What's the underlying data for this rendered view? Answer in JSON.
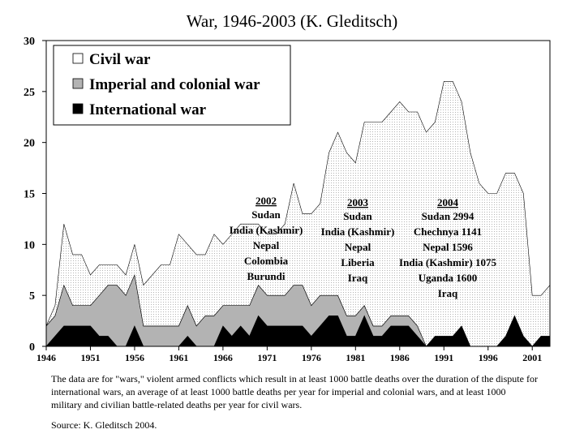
{
  "chart_data": {
    "type": "area",
    "title": "War, 1946-2003 (K. Gleditsch)",
    "xlabel": "",
    "ylabel": "",
    "ylim": [
      0,
      30
    ],
    "xlim": [
      1946,
      2003
    ],
    "stacked": true,
    "grid": false,
    "legend_position": "top-left",
    "x_ticks": [
      1946,
      1951,
      1956,
      1961,
      1966,
      1971,
      1976,
      1981,
      1986,
      1991,
      1996,
      2001
    ],
    "y_ticks": [
      0,
      5,
      10,
      15,
      20,
      25,
      30
    ],
    "x": [
      1946,
      1947,
      1948,
      1949,
      1950,
      1951,
      1952,
      1953,
      1954,
      1955,
      1956,
      1957,
      1958,
      1959,
      1960,
      1961,
      1962,
      1963,
      1964,
      1965,
      1966,
      1967,
      1968,
      1969,
      1970,
      1971,
      1972,
      1973,
      1974,
      1975,
      1976,
      1977,
      1978,
      1979,
      1980,
      1981,
      1982,
      1983,
      1984,
      1985,
      1986,
      1987,
      1988,
      1989,
      1990,
      1991,
      1992,
      1993,
      1994,
      1995,
      1996,
      1997,
      1998,
      1999,
      2000,
      2001,
      2002,
      2003
    ],
    "series": [
      {
        "name": "International war",
        "color": "#000000",
        "values": [
          0,
          1,
          2,
          2,
          2,
          2,
          1,
          1,
          0,
          0,
          2,
          0,
          0,
          0,
          0,
          0,
          1,
          0,
          0,
          0,
          2,
          1,
          2,
          1,
          3,
          2,
          2,
          2,
          2,
          2,
          1,
          2,
          3,
          3,
          1,
          1,
          3,
          1,
          1,
          2,
          2,
          2,
          1,
          0,
          1,
          1,
          1,
          2,
          0,
          0,
          0,
          0,
          1,
          3,
          1,
          0,
          1,
          1
        ]
      },
      {
        "name": "Imperial and colonial war",
        "color": "#b3b3b3",
        "values": [
          2,
          2,
          4,
          2,
          2,
          2,
          4,
          5,
          6,
          5,
          5,
          2,
          2,
          2,
          2,
          2,
          3,
          2,
          3,
          3,
          2,
          3,
          2,
          3,
          3,
          3,
          3,
          3,
          4,
          4,
          3,
          3,
          2,
          2,
          2,
          2,
          1,
          1,
          1,
          1,
          1,
          1,
          1,
          0,
          0,
          0,
          0,
          0,
          0,
          0,
          0,
          0,
          0,
          0,
          0,
          0,
          0,
          0
        ]
      },
      {
        "name": "Civil war",
        "color": "#ffffff",
        "values": [
          0,
          1,
          6,
          5,
          5,
          3,
          3,
          2,
          2,
          2,
          3,
          4,
          5,
          6,
          6,
          9,
          6,
          7,
          6,
          8,
          6,
          7,
          8,
          8,
          6,
          6,
          6,
          7,
          10,
          7,
          9,
          9,
          14,
          16,
          16,
          15,
          18,
          20,
          20,
          20,
          21,
          20,
          21,
          21,
          21,
          25,
          25,
          22,
          19,
          16,
          15,
          15,
          16,
          14,
          14,
          5,
          4,
          5
        ]
      }
    ],
    "annotations": [
      {
        "year": "2002",
        "lines": [
          "Sudan",
          "India (Kashmir)",
          "Nepal",
          "Colombia",
          "Burundi"
        ]
      },
      {
        "year": "2003",
        "lines": [
          "Sudan",
          "India (Kashmir)",
          "Nepal",
          "Liberia",
          "Iraq"
        ]
      },
      {
        "year": "2004",
        "lines": [
          "Sudan 2994",
          "Chechnya 1141",
          "Nepal 1596",
          "India (Kashmir) 1075",
          "Uganda 1600",
          "Iraq"
        ]
      }
    ]
  },
  "caption": "The data are for \"wars,\" violent armed conflicts which result in at least 1000 battle deaths over the duration of the dispute for international wars, an average of at least 1000 battle deaths per year for imperial and colonial wars, and at least 1000 military and civilian battle-related deaths per year for civil wars.",
  "source": "Source: K. Gleditsch 2004."
}
